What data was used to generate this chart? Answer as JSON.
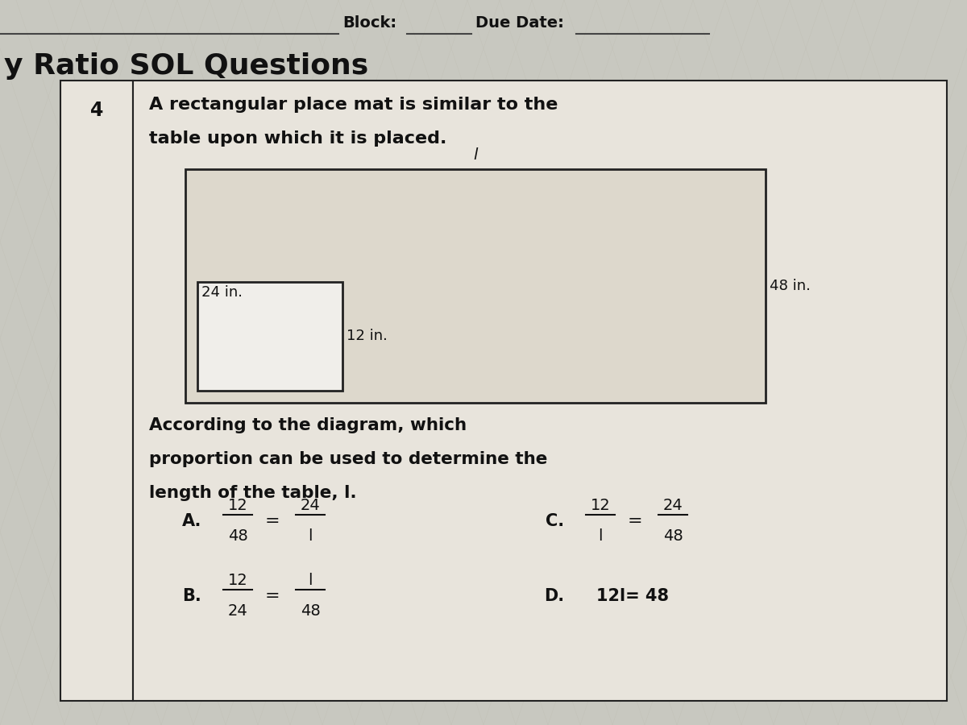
{
  "bg_color": "#c8c8c0",
  "page_bg": "#d8d8d0",
  "header_block_label": "Block:",
  "header_due_label": "Due Date:",
  "header_title": "y Ratio SOL Questions",
  "question_number": "4",
  "question_text_line1": "A rectangular place mat is similar to the",
  "question_text_line2": "table upon which it is placed.",
  "diagram_label_top": "l",
  "diagram_label_left": "24 in.",
  "diagram_label_right": "48 in.",
  "diagram_label_small": "12 in.",
  "question_body_line1": "According to the diagram, which",
  "question_body_line2": "proportion can be used to determine the",
  "question_body_line3": "length of the table, l.",
  "option_A_label": "A.",
  "option_A_num": "12",
  "option_A_den": "48",
  "option_A_eq": "=",
  "option_A_num2": "24",
  "option_A_den2": "l",
  "option_B_label": "B.",
  "option_B_num": "12",
  "option_B_den": "24",
  "option_B_eq": "=",
  "option_B_num2": "l",
  "option_B_den2": "48",
  "option_C_label": "C.",
  "option_C_num": "12",
  "option_C_den": "l",
  "option_C_eq": "=",
  "option_C_num2": "24",
  "option_C_den2": "48",
  "option_D_label": "D.",
  "option_D_text": "12l= 48",
  "text_color": "#111111",
  "line_color": "#444444",
  "border_color": "#222222",
  "box_fill": "#e8e4dc",
  "table_fill": "#ddd8cc",
  "placemat_fill": "#f0eeea",
  "white": "#ffffff"
}
